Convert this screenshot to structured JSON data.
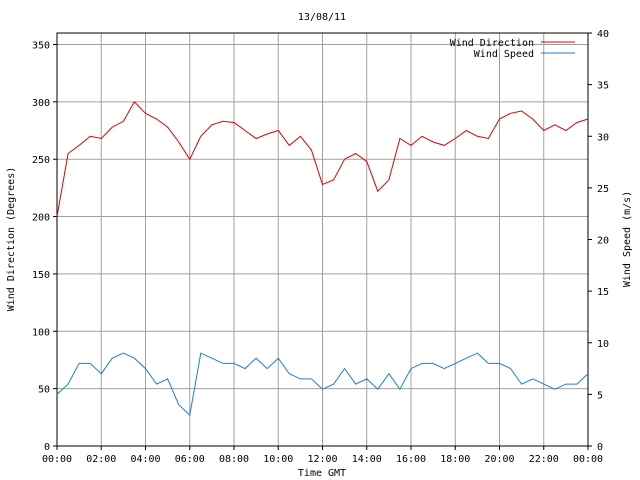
{
  "chart_data": {
    "type": "line",
    "title": "13/08/11",
    "xlabel": "Time GMT",
    "ylabel": "Wind Direction (Degrees)",
    "y2label": "Wind Speed (m/s)",
    "xlim": [
      0,
      24
    ],
    "ylim": [
      0,
      360
    ],
    "y2lim": [
      0,
      40
    ],
    "x_ticks": [
      "00:00",
      "02:00",
      "04:00",
      "06:00",
      "08:00",
      "10:00",
      "12:00",
      "14:00",
      "16:00",
      "18:00",
      "20:00",
      "22:00",
      "00:00"
    ],
    "y_ticks": [
      "0",
      "50",
      "100",
      "150",
      "200",
      "250",
      "300",
      "350"
    ],
    "y2_ticks": [
      "0",
      "5",
      "10",
      "15",
      "20",
      "25",
      "30",
      "35",
      "40"
    ],
    "grid": true,
    "legend_position": "top-right",
    "x_unit": "hours GMT",
    "series": [
      {
        "name": "Wind Direction",
        "axis": "left",
        "color": "#e00000",
        "x": [
          0,
          0.5,
          1,
          1.5,
          2,
          2.5,
          3,
          3.5,
          4,
          4.5,
          5,
          5.5,
          6,
          6.5,
          7,
          7.5,
          8,
          8.5,
          9,
          9.5,
          10,
          10.5,
          11,
          11.5,
          12,
          12.5,
          13,
          13.5,
          14,
          14.5,
          15,
          15.5,
          16,
          16.5,
          17,
          17.5,
          18,
          18.5,
          19,
          19.5,
          20,
          20.5,
          21,
          21.5,
          22,
          22.5,
          23,
          23.5,
          24
        ],
        "values": [
          200,
          255,
          262,
          270,
          268,
          278,
          283,
          300,
          290,
          285,
          278,
          265,
          250,
          270,
          280,
          283,
          282,
          275,
          268,
          272,
          275,
          262,
          270,
          258,
          228,
          232,
          250,
          255,
          248,
          222,
          232,
          268,
          262,
          270,
          265,
          262,
          268,
          275,
          270,
          268,
          285,
          290,
          292,
          285,
          275,
          280,
          275,
          282,
          285
        ]
      },
      {
        "name": "Wind Speed",
        "axis": "right",
        "color": "#1c80d0",
        "x": [
          0,
          0.5,
          1,
          1.5,
          2,
          2.5,
          3,
          3.5,
          4,
          4.5,
          5,
          5.5,
          6,
          6.5,
          7,
          7.5,
          8,
          8.5,
          9,
          9.5,
          10,
          10.5,
          11,
          11.5,
          12,
          12.5,
          13,
          13.5,
          14,
          14.5,
          15,
          15.5,
          16,
          16.5,
          17,
          17.5,
          18,
          18.5,
          19,
          19.5,
          20,
          20.5,
          21,
          21.5,
          22,
          22.5,
          23,
          23.5,
          24
        ],
        "values": [
          5,
          6,
          8,
          8,
          7,
          8.5,
          9,
          8.5,
          7.5,
          6,
          6.5,
          4,
          3,
          9,
          8.5,
          8,
          8,
          7.5,
          8.5,
          7.5,
          8.5,
          7,
          6.5,
          6.5,
          5.5,
          6,
          7.5,
          6,
          6.5,
          5.5,
          7,
          5.5,
          7.5,
          8,
          8,
          7.5,
          8,
          8.5,
          9,
          8,
          8,
          7.5,
          6,
          6.5,
          6,
          5.5,
          6,
          6,
          7
        ]
      }
    ]
  }
}
